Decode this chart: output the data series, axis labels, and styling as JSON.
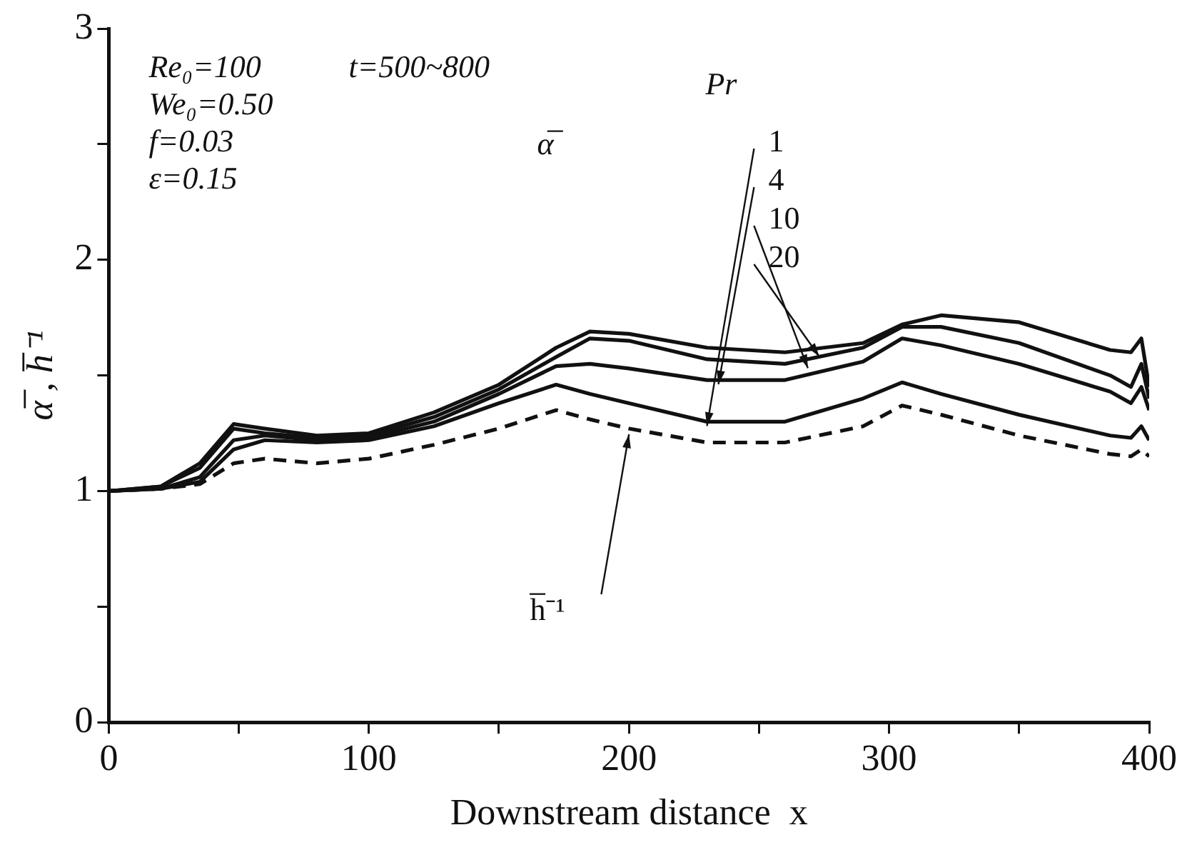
{
  "chart_data": {
    "type": "line",
    "xlabel": "Downstream distance  x",
    "ylabel": "α̅ , h̅⁻¹",
    "x": [
      0,
      20,
      35,
      48,
      60,
      80,
      100,
      125,
      150,
      172,
      185,
      200,
      230,
      260,
      290,
      305,
      320,
      350,
      385,
      393,
      397,
      400
    ],
    "series": [
      {
        "name": "1",
        "color": "#111111",
        "values": [
          1.0,
          1.01,
          1.04,
          1.18,
          1.22,
          1.21,
          1.22,
          1.28,
          1.38,
          1.46,
          1.42,
          1.38,
          1.3,
          1.3,
          1.4,
          1.47,
          1.42,
          1.33,
          1.24,
          1.23,
          1.28,
          1.22
        ]
      },
      {
        "name": "4",
        "color": "#111111",
        "values": [
          1.0,
          1.01,
          1.06,
          1.22,
          1.24,
          1.22,
          1.23,
          1.3,
          1.42,
          1.54,
          1.55,
          1.53,
          1.48,
          1.48,
          1.56,
          1.66,
          1.63,
          1.55,
          1.43,
          1.38,
          1.45,
          1.35
        ]
      },
      {
        "name": "10",
        "color": "#111111",
        "values": [
          1.0,
          1.02,
          1.1,
          1.27,
          1.25,
          1.23,
          1.24,
          1.32,
          1.44,
          1.58,
          1.66,
          1.65,
          1.57,
          1.55,
          1.62,
          1.71,
          1.71,
          1.64,
          1.5,
          1.45,
          1.55,
          1.4
        ]
      },
      {
        "name": "20",
        "color": "#111111",
        "values": [
          1.0,
          1.02,
          1.12,
          1.29,
          1.27,
          1.24,
          1.25,
          1.34,
          1.46,
          1.62,
          1.69,
          1.68,
          1.62,
          1.6,
          1.64,
          1.72,
          1.76,
          1.73,
          1.61,
          1.6,
          1.66,
          1.45
        ]
      },
      {
        "name": "h̅⁻¹",
        "color": "#111111",
        "line_style": "dashed",
        "values": [
          1.0,
          1.01,
          1.03,
          1.12,
          1.14,
          1.12,
          1.14,
          1.2,
          1.27,
          1.35,
          1.31,
          1.27,
          1.21,
          1.21,
          1.28,
          1.37,
          1.33,
          1.24,
          1.16,
          1.15,
          1.18,
          1.15
        ]
      }
    ],
    "annotations": [
      "Re₀=100",
      "We₀=0.50",
      "f=0.03",
      "ε=0.15",
      "t=500~800",
      "Pr",
      "α̅"
    ],
    "xlim": [
      0,
      400
    ],
    "xticks": [
      0,
      {
        "value": 50,
        "label": null
      },
      100,
      {
        "value": 150,
        "label": null
      },
      200,
      {
        "value": 250,
        "label": null
      },
      300,
      {
        "value": 350,
        "label": null
      },
      400
    ],
    "ylim": [
      0,
      3
    ],
    "yticks": [
      0,
      {
        "value": 0.5,
        "label": null
      },
      1,
      {
        "value": 1.5,
        "label": null
      },
      2,
      {
        "value": 2.5,
        "label": null
      },
      3
    ],
    "grid": false,
    "legend": false,
    "marker": "none",
    "line_style": "solid"
  }
}
